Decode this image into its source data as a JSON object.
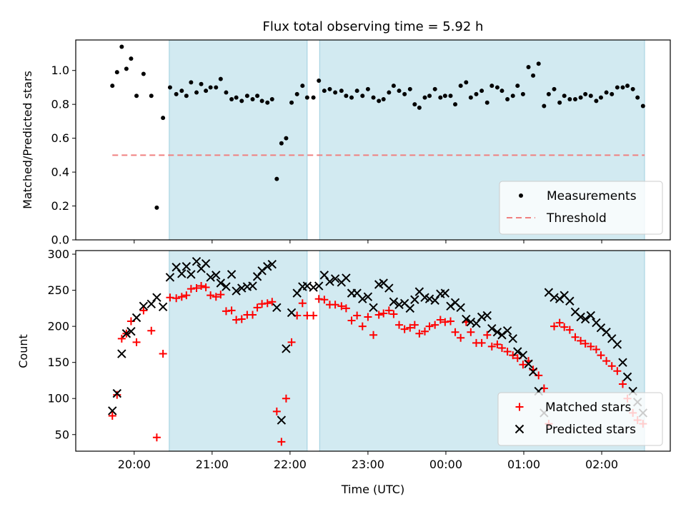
{
  "chart_data": [
    {
      "type": "scatter",
      "title": "Flux total observing time = 5.92 h",
      "xlabel": "",
      "ylabel": "Matched/Predicted stars",
      "ylim": [
        0.0,
        1.18
      ],
      "yticks": [
        "0.0",
        "0.2",
        "0.4",
        "0.6",
        "0.8",
        "1.0"
      ],
      "xtick_labels": [
        "20:00",
        "21:00",
        "22:00",
        "23:00",
        "00:00",
        "01:00",
        "02:00"
      ],
      "x_unit": "hours UTC (from 19:00)",
      "shaded_intervals": [
        [
          20.45,
          22.22
        ],
        [
          22.38,
          26.55
        ]
      ],
      "legend_position": "lower right",
      "series": [
        {
          "name": "Measurements",
          "marker": "dot",
          "color": "#000000",
          "x": [
            19.72,
            19.78,
            19.84,
            19.9,
            19.96,
            20.03,
            20.12,
            20.22,
            20.29,
            20.37,
            20.46,
            20.54,
            20.61,
            20.67,
            20.73,
            20.8,
            20.86,
            20.92,
            20.98,
            21.05,
            21.11,
            21.18,
            21.25,
            21.31,
            21.38,
            21.45,
            21.52,
            21.58,
            21.64,
            21.71,
            21.77,
            21.83,
            21.89,
            21.95,
            22.02,
            22.09,
            22.16,
            22.22,
            22.3,
            22.37,
            22.44,
            22.51,
            22.58,
            22.66,
            22.72,
            22.79,
            22.86,
            22.93,
            23.0,
            23.07,
            23.14,
            23.2,
            23.27,
            23.33,
            23.4,
            23.47,
            23.54,
            23.6,
            23.66,
            23.73,
            23.79,
            23.86,
            23.93,
            23.99,
            24.06,
            24.12,
            24.19,
            24.26,
            24.32,
            24.39,
            24.46,
            24.53,
            24.59,
            24.66,
            24.72,
            24.79,
            24.86,
            24.92,
            24.99,
            25.06,
            25.12,
            25.19,
            25.26,
            25.32,
            25.39,
            25.46,
            25.52,
            25.59,
            25.66,
            25.73,
            25.79,
            25.86,
            25.93,
            25.99,
            26.06,
            26.13,
            26.2,
            26.27,
            26.33,
            26.4,
            26.46,
            26.53
          ],
          "y": [
            0.91,
            0.99,
            1.14,
            1.01,
            1.07,
            0.85,
            0.98,
            0.85,
            0.19,
            0.72,
            0.9,
            0.86,
            0.88,
            0.85,
            0.93,
            0.87,
            0.92,
            0.88,
            0.9,
            0.9,
            0.95,
            0.87,
            0.83,
            0.84,
            0.82,
            0.85,
            0.83,
            0.85,
            0.82,
            0.81,
            0.83,
            0.36,
            0.57,
            0.6,
            0.81,
            0.86,
            0.91,
            0.84,
            0.84,
            0.94,
            0.88,
            0.89,
            0.87,
            0.88,
            0.85,
            0.84,
            0.88,
            0.85,
            0.89,
            0.84,
            0.82,
            0.83,
            0.87,
            0.91,
            0.88,
            0.86,
            0.89,
            0.8,
            0.78,
            0.84,
            0.85,
            0.89,
            0.84,
            0.85,
            0.85,
            0.8,
            0.91,
            0.93,
            0.84,
            0.86,
            0.88,
            0.81,
            0.91,
            0.9,
            0.88,
            0.83,
            0.85,
            0.91,
            0.86,
            1.02,
            0.97,
            1.04,
            0.79,
            0.86,
            0.89,
            0.81,
            0.85,
            0.83,
            0.83,
            0.84,
            0.86,
            0.85,
            0.82,
            0.84,
            0.87,
            0.86,
            0.9,
            0.9,
            0.91,
            0.89,
            0.84,
            0.79
          ]
        },
        {
          "name": "Threshold",
          "marker": "dashed-line",
          "color": "#f08080",
          "x": [
            19.72,
            26.55
          ],
          "y": [
            0.5,
            0.5
          ]
        }
      ]
    },
    {
      "type": "scatter",
      "title": "",
      "xlabel": "Time (UTC)",
      "ylabel": "Count",
      "ylim": [
        27,
        305
      ],
      "yticks": [
        "50",
        "100",
        "150",
        "200",
        "250",
        "300"
      ],
      "xtick_labels": [
        "20:00",
        "21:00",
        "22:00",
        "23:00",
        "00:00",
        "01:00",
        "02:00"
      ],
      "x_unit": "hours UTC (from 19:00)",
      "shaded_intervals": [
        [
          20.45,
          22.22
        ],
        [
          22.38,
          26.55
        ]
      ],
      "legend_position": "lower right",
      "series": [
        {
          "name": "Matched stars",
          "marker": "plus",
          "color": "#ff0000",
          "x": [
            19.72,
            19.78,
            19.84,
            19.9,
            19.96,
            20.03,
            20.12,
            20.22,
            20.29,
            20.37,
            20.46,
            20.54,
            20.61,
            20.67,
            20.73,
            20.8,
            20.86,
            20.92,
            20.98,
            21.05,
            21.11,
            21.18,
            21.25,
            21.31,
            21.38,
            21.45,
            21.52,
            21.58,
            21.64,
            21.71,
            21.77,
            21.83,
            21.89,
            21.95,
            22.02,
            22.09,
            22.16,
            22.22,
            22.3,
            22.37,
            22.44,
            22.51,
            22.58,
            22.66,
            22.72,
            22.79,
            22.86,
            22.93,
            23.0,
            23.07,
            23.14,
            23.2,
            23.27,
            23.33,
            23.4,
            23.47,
            23.54,
            23.6,
            23.66,
            23.73,
            23.79,
            23.86,
            23.93,
            23.99,
            24.06,
            24.12,
            24.19,
            24.26,
            24.32,
            24.39,
            24.46,
            24.53,
            24.59,
            24.66,
            24.72,
            24.79,
            24.86,
            24.92,
            24.99,
            25.06,
            25.12,
            25.19,
            25.26,
            25.32,
            25.39,
            25.46,
            25.52,
            25.59,
            25.66,
            25.73,
            25.79,
            25.86,
            25.93,
            25.99,
            26.06,
            26.13,
            26.2,
            26.27,
            26.33,
            26.4,
            26.46,
            26.53
          ],
          "y": [
            76,
            105,
            183,
            190,
            207,
            178,
            222,
            194,
            46,
            162,
            240,
            239,
            241,
            243,
            252,
            253,
            256,
            254,
            243,
            241,
            244,
            221,
            222,
            209,
            210,
            216,
            216,
            226,
            231,
            232,
            234,
            82,
            40,
            100,
            178,
            215,
            232,
            215,
            215,
            238,
            237,
            230,
            230,
            228,
            225,
            208,
            215,
            200,
            213,
            188,
            216,
            218,
            222,
            217,
            202,
            196,
            198,
            202,
            190,
            193,
            200,
            202,
            209,
            206,
            207,
            192,
            184,
            206,
            192,
            177,
            177,
            188,
            172,
            175,
            170,
            165,
            160,
            156,
            147,
            152,
            140,
            132,
            114,
            65,
            200,
            205,
            199,
            195,
            185,
            180,
            176,
            172,
            168,
            160,
            152,
            145,
            138,
            120,
            100,
            80,
            70,
            65
          ]
        },
        {
          "name": "Predicted stars",
          "marker": "x",
          "color": "#000000",
          "x": [
            19.72,
            19.78,
            19.84,
            19.9,
            19.96,
            20.03,
            20.12,
            20.22,
            20.29,
            20.37,
            20.46,
            20.54,
            20.61,
            20.67,
            20.73,
            20.8,
            20.86,
            20.92,
            20.98,
            21.05,
            21.11,
            21.18,
            21.25,
            21.31,
            21.38,
            21.45,
            21.52,
            21.58,
            21.64,
            21.71,
            21.77,
            21.83,
            21.89,
            21.95,
            22.02,
            22.09,
            22.16,
            22.22,
            22.3,
            22.37,
            22.44,
            22.51,
            22.58,
            22.66,
            22.72,
            22.79,
            22.86,
            22.93,
            23.0,
            23.07,
            23.14,
            23.2,
            23.27,
            23.33,
            23.4,
            23.47,
            23.54,
            23.6,
            23.66,
            23.73,
            23.79,
            23.86,
            23.93,
            23.99,
            24.06,
            24.12,
            24.19,
            24.26,
            24.32,
            24.39,
            24.46,
            24.53,
            24.59,
            24.66,
            24.72,
            24.79,
            24.86,
            24.92,
            24.99,
            25.06,
            25.12,
            25.19,
            25.26,
            25.32,
            25.39,
            25.46,
            25.52,
            25.59,
            25.66,
            25.73,
            25.79,
            25.86,
            25.93,
            25.99,
            26.06,
            26.13,
            26.2,
            26.27,
            26.33,
            26.4,
            26.46,
            26.53
          ],
          "y": [
            83,
            107,
            162,
            190,
            193,
            212,
            228,
            231,
            240,
            227,
            268,
            282,
            273,
            283,
            272,
            290,
            280,
            287,
            268,
            271,
            260,
            255,
            272,
            249,
            253,
            255,
            256,
            269,
            277,
            283,
            286,
            226,
            70,
            169,
            219,
            246,
            255,
            256,
            254,
            256,
            271,
            262,
            266,
            261,
            267,
            246,
            246,
            238,
            241,
            226,
            258,
            260,
            253,
            234,
            230,
            232,
            225,
            237,
            248,
            240,
            238,
            236,
            245,
            246,
            228,
            233,
            226,
            210,
            206,
            204,
            213,
            215,
            197,
            192,
            188,
            194,
            183,
            165,
            160,
            148,
            137,
            110,
            80,
            247,
            240,
            238,
            243,
            235,
            220,
            213,
            210,
            215,
            205,
            198,
            192,
            183,
            175,
            150,
            130,
            110,
            95,
            80
          ]
        }
      ]
    }
  ]
}
